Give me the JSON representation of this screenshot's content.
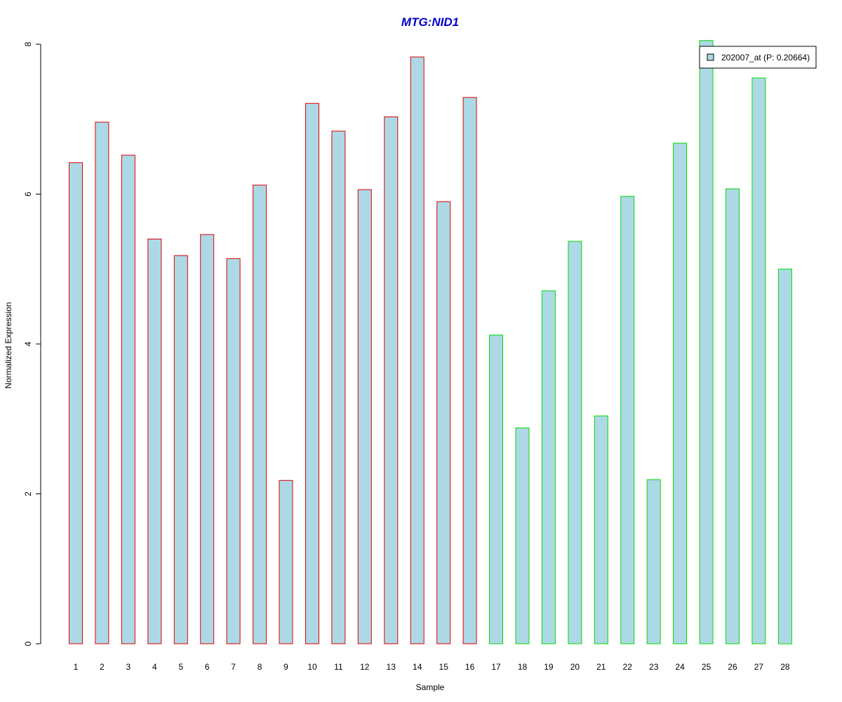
{
  "chart_data": {
    "type": "bar",
    "title": "MTG:NID1",
    "xlabel": "Sample",
    "ylabel": "Normalized Expression",
    "ylim": [
      0,
      8
    ],
    "yticks": [
      "0",
      "2",
      "4",
      "6",
      "8"
    ],
    "categories": [
      "1",
      "2",
      "3",
      "4",
      "5",
      "6",
      "7",
      "8",
      "9",
      "10",
      "11",
      "12",
      "13",
      "14",
      "15",
      "16",
      "17",
      "18",
      "19",
      "20",
      "21",
      "22",
      "23",
      "24",
      "25",
      "26",
      "27",
      "28"
    ],
    "series": [
      {
        "name": "202007_at (P: 0.20664)",
        "values": [
          6.42,
          6.96,
          6.52,
          5.4,
          5.18,
          5.46,
          5.14,
          6.12,
          2.18,
          7.21,
          6.84,
          6.06,
          7.03,
          7.83,
          5.9,
          7.29,
          4.12,
          2.88,
          4.71,
          5.37,
          3.04,
          5.97,
          2.19,
          6.68,
          8.05,
          6.07,
          7.55,
          5.0
        ]
      }
    ],
    "group_outline_colors": [
      "#e00000",
      "#e00000",
      "#e00000",
      "#e00000",
      "#e00000",
      "#e00000",
      "#e00000",
      "#e00000",
      "#e00000",
      "#e00000",
      "#e00000",
      "#e00000",
      "#e00000",
      "#e00000",
      "#e00000",
      "#e00000",
      "#00dd00",
      "#00dd00",
      "#00dd00",
      "#00dd00",
      "#00dd00",
      "#00dd00",
      "#00dd00",
      "#00dd00",
      "#00dd00",
      "#00dd00",
      "#00dd00",
      "#00dd00"
    ],
    "legend": {
      "placement": "top-right",
      "label": "202007_at (P: 0.20664)"
    },
    "grid": false,
    "colors": {
      "bar_fill": "#add8e6",
      "title": "#0000cc",
      "axis": "#000000"
    }
  }
}
